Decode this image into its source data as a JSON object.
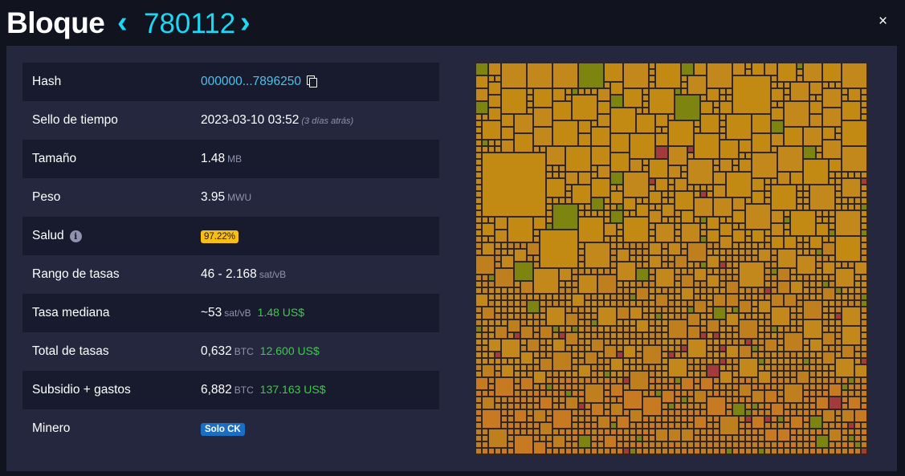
{
  "header": {
    "title": "Bloque",
    "block_height": "780112",
    "prev_label": "‹",
    "next_label": "›",
    "close_label": "×"
  },
  "details": {
    "hash": {
      "label": "Hash",
      "value": "000000...7896250"
    },
    "timestamp": {
      "label": "Sello de tiempo",
      "value": "2023-03-10 03:52",
      "ago": "(3 días atrás)"
    },
    "size": {
      "label": "Tamaño",
      "value": "1.48",
      "unit": "MB"
    },
    "weight": {
      "label": "Peso",
      "value": "3.95",
      "unit": "MWU"
    },
    "health": {
      "label": "Salud",
      "info_icon": "i",
      "value": "97.22%"
    },
    "fee_range": {
      "label": "Rango de tasas",
      "value": "46 - 2.168",
      "unit": "sat/vB"
    },
    "median_fee": {
      "label": "Tasa mediana",
      "value": "~53",
      "unit": "sat/vB",
      "fiat": "1.48 US$"
    },
    "total_fees": {
      "label": "Total de tasas",
      "value": "0,632",
      "unit": "BTC",
      "fiat": "12.600 US$"
    },
    "subsidy": {
      "label": "Subsidio + gastos",
      "value": "6,882",
      "unit": "BTC",
      "fiat": "137.163 US$"
    },
    "miner": {
      "label": "Minero",
      "value": "Solo CK"
    }
  },
  "colors": {
    "accent": "#1bd8f4",
    "link": "#4ac2f0",
    "fiat": "#3bcc49",
    "health_badge": "#f7be16",
    "miner_badge": "#1a6fc2",
    "tx_colors": [
      "#c38a13",
      "#c2881b",
      "#c07f1f",
      "#c77a22",
      "#7d8410",
      "#a33a3c"
    ]
  },
  "icons": {
    "copy": "copy-icon",
    "info": "info-icon",
    "close": "close-icon"
  }
}
